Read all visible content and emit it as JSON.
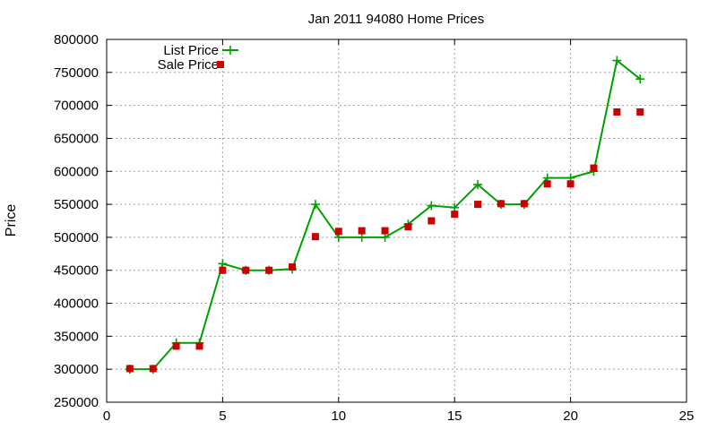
{
  "chart_data": {
    "type": "line",
    "title": "Jan 2011 94080 Home Prices",
    "xlabel": "",
    "ylabel": "Price",
    "xlim": [
      0,
      25
    ],
    "ylim": [
      250000,
      800000
    ],
    "xticks": [
      0,
      5,
      10,
      15,
      20,
      25
    ],
    "yticks": [
      250000,
      300000,
      350000,
      400000,
      450000,
      500000,
      550000,
      600000,
      650000,
      700000,
      750000,
      800000
    ],
    "grid": true,
    "legend_position": "top-left",
    "series": [
      {
        "name": "List Price",
        "style": "line-points",
        "color": "#00a000",
        "x": [
          1,
          2,
          3,
          4,
          5,
          6,
          7,
          8,
          9,
          10,
          11,
          12,
          13,
          14,
          15,
          16,
          17,
          18,
          19,
          20,
          21,
          22,
          23
        ],
        "y": [
          300000,
          300000,
          340000,
          340000,
          460000,
          450000,
          450000,
          452000,
          550000,
          500000,
          500000,
          500000,
          520000,
          548000,
          545000,
          580000,
          550000,
          550000,
          590000,
          590000,
          600000,
          768000,
          740000
        ]
      },
      {
        "name": "Sale Price",
        "style": "points",
        "color": "#cc0000",
        "x": [
          1,
          2,
          3,
          4,
          5,
          6,
          7,
          8,
          9,
          10,
          11,
          12,
          13,
          14,
          15,
          16,
          17,
          18,
          19,
          20,
          21,
          22,
          23
        ],
        "y": [
          301000,
          301000,
          335000,
          335000,
          450000,
          450000,
          450000,
          455000,
          501000,
          509000,
          510000,
          510000,
          516000,
          525000,
          535000,
          550000,
          551000,
          551000,
          581000,
          581000,
          605000,
          690000,
          690000
        ]
      }
    ]
  }
}
